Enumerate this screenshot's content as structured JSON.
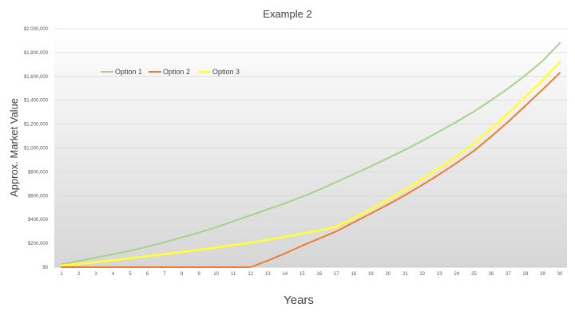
{
  "chart_data": {
    "type": "line",
    "title": "Example 2",
    "xlabel": "Years",
    "ylabel": "Approx. Market Value",
    "x": [
      1,
      2,
      3,
      4,
      5,
      6,
      7,
      8,
      9,
      10,
      11,
      12,
      13,
      14,
      15,
      16,
      17,
      18,
      19,
      20,
      21,
      22,
      23,
      24,
      25,
      26,
      27,
      28,
      29,
      30
    ],
    "ylim": [
      0,
      2000000
    ],
    "yticks": [
      0,
      200000,
      400000,
      600000,
      800000,
      1000000,
      1200000,
      1400000,
      1600000,
      1800000,
      2000000
    ],
    "ytick_labels": [
      "$0",
      "$200,000",
      "$400,000",
      "$600,000",
      "$800,000",
      "$1,000,000",
      "$1,200,000",
      "$1,400,000",
      "$1,600,000",
      "$1,800,000",
      "$2,000,000"
    ],
    "grid": true,
    "legend_position": "top-left",
    "series": [
      {
        "name": "Option 1",
        "color": "#a9d18e",
        "values": [
          25000,
          52000,
          80000,
          108000,
          138000,
          172000,
          210000,
          250000,
          290000,
          335000,
          385000,
          435000,
          485000,
          535000,
          590000,
          650000,
          715000,
          780000,
          845000,
          915000,
          985000,
          1060000,
          1140000,
          1220000,
          1305000,
          1400000,
          1500000,
          1610000,
          1730000,
          1880000
        ]
      },
      {
        "name": "Option 2",
        "color": "#ed7d31",
        "values": [
          0,
          0,
          0,
          0,
          0,
          0,
          0,
          0,
          0,
          0,
          0,
          0,
          55000,
          115000,
          180000,
          240000,
          300000,
          375000,
          450000,
          525000,
          605000,
          690000,
          780000,
          875000,
          975000,
          1095000,
          1220000,
          1355000,
          1490000,
          1630000
        ]
      },
      {
        "name": "Option 3",
        "color": "#ffff33",
        "values": [
          15000,
          28000,
          42000,
          58000,
          75000,
          92000,
          110000,
          128000,
          145000,
          165000,
          185000,
          205000,
          230000,
          255000,
          280000,
          308000,
          340000,
          410000,
          485000,
          565000,
          650000,
          740000,
          835000,
          930000,
          1040000,
          1160000,
          1290000,
          1430000,
          1570000,
          1720000
        ]
      }
    ]
  }
}
